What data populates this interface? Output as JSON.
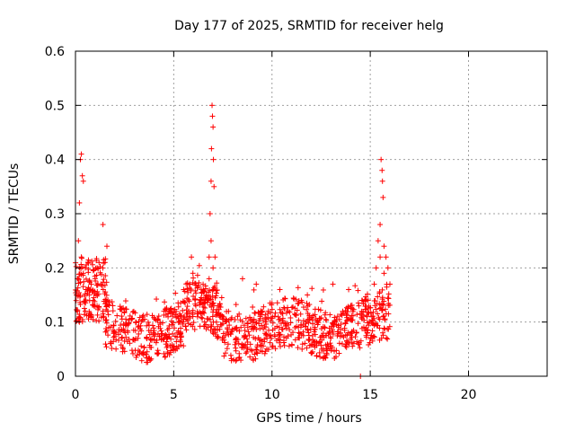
{
  "chart_data": {
    "type": "scatter",
    "title": "Day 177 of 2025, SRMTID for receiver helg",
    "xlabel": "GPS time / hours",
    "ylabel": "SRMTID / TECUs",
    "xlim": [
      0,
      24
    ],
    "ylim": [
      0,
      0.6
    ],
    "xticks": [
      0,
      5,
      10,
      15,
      20
    ],
    "xtick_labels": [
      "0",
      "5",
      "10",
      "15",
      "20"
    ],
    "yticks": [
      0,
      0.1,
      0.2,
      0.3,
      0.4,
      0.5,
      0.6
    ],
    "ytick_labels": [
      "0",
      "0.1",
      "0.2",
      "0.3",
      "0.4",
      "0.5",
      "0.6"
    ],
    "grid": true,
    "marker": "+",
    "color": "#ff0000",
    "series": [
      {
        "name": "SRMTID",
        "points": [
          [
            0.05,
            0.15
          ],
          [
            0.1,
            0.18
          ],
          [
            0.15,
            0.25
          ],
          [
            0.2,
            0.32
          ],
          [
            0.25,
            0.4
          ],
          [
            0.3,
            0.41
          ],
          [
            0.35,
            0.37
          ],
          [
            0.4,
            0.36
          ],
          [
            0.1,
            0.12
          ],
          [
            0.2,
            0.2
          ],
          [
            0.3,
            0.22
          ],
          [
            0.4,
            0.19
          ],
          [
            0.5,
            0.2
          ],
          [
            0.6,
            0.16
          ],
          [
            0.7,
            0.15
          ],
          [
            0.8,
            0.17
          ],
          [
            0.9,
            0.14
          ],
          [
            1.0,
            0.18
          ],
          [
            1.1,
            0.2
          ],
          [
            1.2,
            0.21
          ],
          [
            1.3,
            0.17
          ],
          [
            1.4,
            0.28
          ],
          [
            1.5,
            0.21
          ],
          [
            1.6,
            0.24
          ],
          [
            0.2,
            0.1
          ],
          [
            0.5,
            0.12
          ],
          [
            0.8,
            0.11
          ],
          [
            1.1,
            0.13
          ],
          [
            1.4,
            0.12
          ],
          [
            1.7,
            0.09
          ],
          [
            6.8,
            0.22
          ],
          [
            6.85,
            0.3
          ],
          [
            6.9,
            0.36
          ],
          [
            6.92,
            0.42
          ],
          [
            6.95,
            0.5
          ],
          [
            6.97,
            0.48
          ],
          [
            7.0,
            0.46
          ],
          [
            7.02,
            0.4
          ],
          [
            7.05,
            0.35
          ],
          [
            6.9,
            0.25
          ],
          [
            7.1,
            0.22
          ],
          [
            7.0,
            0.2
          ],
          [
            6.8,
            0.18
          ],
          [
            14.5,
            0.0
          ],
          [
            15.2,
            0.17
          ],
          [
            15.3,
            0.2
          ],
          [
            15.4,
            0.25
          ],
          [
            15.5,
            0.28
          ],
          [
            15.55,
            0.4
          ],
          [
            15.6,
            0.38
          ],
          [
            15.62,
            0.36
          ],
          [
            15.65,
            0.33
          ],
          [
            15.7,
            0.24
          ],
          [
            15.8,
            0.22
          ],
          [
            15.9,
            0.2
          ],
          [
            16.0,
            0.17
          ],
          [
            15.5,
            0.22
          ],
          [
            15.7,
            0.19
          ],
          [
            5.9,
            0.22
          ],
          [
            8.5,
            0.18
          ],
          [
            9.2,
            0.17
          ],
          [
            10.4,
            0.16
          ],
          [
            11.8,
            0.15
          ],
          [
            13.1,
            0.17
          ],
          [
            13.9,
            0.16
          ]
        ]
      }
    ]
  }
}
